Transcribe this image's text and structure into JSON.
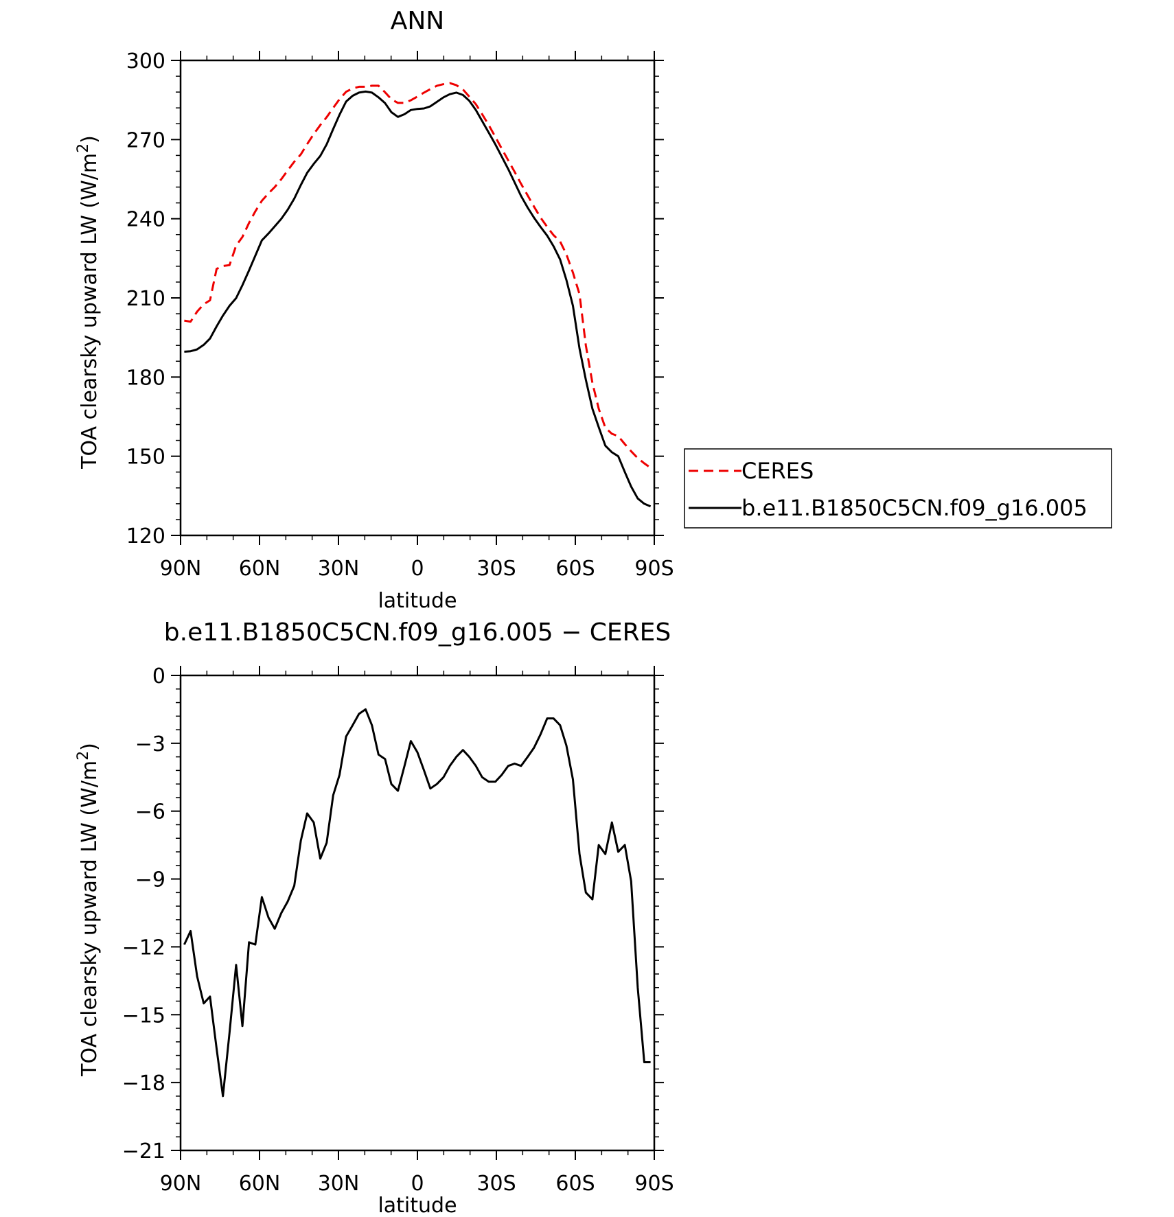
{
  "chart_data": [
    {
      "type": "line",
      "title": "ANN",
      "xlabel": "latitude",
      "ylabel": "TOA clearsky upward LW (W/m",
      "ylabel_sup": "2",
      "ylabel_close": ")",
      "xlim": [
        90,
        -90
      ],
      "ylim": [
        120,
        300
      ],
      "x_ticks": [
        90,
        60,
        30,
        0,
        -30,
        -60,
        -90
      ],
      "x_tick_labels": [
        "90N",
        "60N",
        "30N",
        "0",
        "30S",
        "60S",
        "90S"
      ],
      "y_ticks": [
        120,
        150,
        180,
        210,
        240,
        270,
        300
      ],
      "y_tick_labels": [
        "120",
        "150",
        "180",
        "210",
        "240",
        "270",
        "300"
      ],
      "legend_position": "right",
      "series": [
        {
          "name": "CERES",
          "color": "#ee0000",
          "dash": true,
          "x": [
            88.6,
            86.2,
            83.7,
            81.2,
            78.8,
            76.3,
            73.9,
            71.4,
            68.9,
            66.5,
            64.0,
            61.6,
            59.1,
            56.6,
            54.2,
            51.7,
            49.3,
            46.8,
            44.3,
            41.9,
            39.4,
            36.9,
            34.5,
            32.0,
            29.6,
            27.1,
            24.6,
            22.2,
            19.7,
            17.3,
            14.8,
            12.3,
            9.9,
            7.4,
            4.9,
            2.5,
            0.0,
            -2.5,
            -4.9,
            -7.4,
            -9.9,
            -12.3,
            -14.8,
            -17.3,
            -19.7,
            -22.2,
            -24.6,
            -27.1,
            -29.6,
            -32.0,
            -34.5,
            -36.9,
            -39.4,
            -41.9,
            -44.3,
            -46.8,
            -49.3,
            -51.7,
            -54.2,
            -56.6,
            -59.1,
            -61.6,
            -64.0,
            -66.5,
            -68.9,
            -71.4,
            -73.9,
            -76.3,
            -78.8,
            -81.2,
            -83.7,
            -86.2,
            -88.6
          ],
          "values": [
            201.4,
            201.0,
            204.8,
            207.6,
            209.1,
            221.0,
            222.1,
            222.4,
            229.8,
            233.1,
            238.4,
            242.8,
            246.8,
            249.6,
            252.0,
            255.0,
            258.3,
            261.6,
            264.4,
            268.3,
            272.1,
            275.5,
            278.5,
            282.0,
            285.3,
            288.1,
            289.4,
            290.0,
            290.0,
            290.4,
            290.4,
            287.9,
            285.3,
            283.9,
            283.9,
            284.9,
            286.3,
            287.8,
            289.1,
            290.4,
            291.0,
            291.4,
            290.6,
            289.0,
            286.3,
            283.4,
            279.6,
            275.5,
            271.0,
            266.6,
            262.1,
            257.8,
            253.2,
            248.8,
            244.6,
            240.4,
            236.9,
            233.8,
            231.4,
            226.5,
            219.6,
            211.4,
            192.0,
            177.8,
            168.0,
            160.8,
            158.5,
            157.6,
            154.6,
            151.9,
            149.3,
            147.3,
            145.6
          ],
          "values_note_ignore": false
        },
        {
          "name": "b.e11.B1850C5CN.f09_g16.005",
          "color": "#000000",
          "dash": false,
          "x": [
            88.6,
            86.2,
            83.7,
            81.2,
            78.8,
            76.3,
            73.9,
            71.4,
            68.9,
            66.5,
            64.0,
            61.6,
            59.1,
            56.6,
            54.2,
            51.7,
            49.3,
            46.8,
            44.3,
            41.9,
            39.4,
            36.9,
            34.5,
            32.0,
            29.6,
            27.1,
            24.6,
            22.2,
            19.7,
            17.3,
            14.8,
            12.3,
            9.9,
            7.4,
            4.9,
            2.5,
            0.0,
            -2.5,
            -4.9,
            -7.4,
            -9.9,
            -12.3,
            -14.8,
            -17.3,
            -19.7,
            -22.2,
            -24.6,
            -27.1,
            -29.6,
            -32.0,
            -34.5,
            -36.9,
            -39.4,
            -41.9,
            -44.3,
            -46.8,
            -49.3,
            -51.7,
            -54.2,
            -56.6,
            -59.1,
            -61.6,
            -64.0,
            -66.5,
            -68.9,
            -71.4,
            -73.9,
            -76.3,
            -78.8,
            -81.2,
            -83.7,
            -86.2,
            -88.6
          ],
          "values": [
            189.6,
            189.8,
            190.5,
            192.2,
            194.6,
            199.2,
            203.3,
            207.0,
            209.9,
            214.8,
            220.4,
            226.0,
            231.8,
            234.4,
            237.1,
            240.0,
            243.4,
            247.6,
            252.8,
            257.4,
            260.8,
            263.8,
            268.2,
            274.0,
            279.4,
            284.4,
            286.6,
            287.8,
            288.2,
            287.8,
            286.0,
            283.8,
            280.4,
            278.6,
            279.6,
            281.2,
            281.6,
            281.8,
            282.6,
            284.3,
            286.0,
            287.2,
            287.8,
            286.9,
            284.7,
            281.2,
            277.0,
            272.6,
            268.2,
            263.6,
            258.8,
            253.8,
            248.6,
            244.2,
            240.4,
            236.9,
            233.6,
            229.6,
            224.6,
            216.8,
            207.0,
            190.8,
            179.0,
            168.0,
            161.0,
            154.0,
            151.5,
            150.0,
            144.0,
            138.5,
            134.0,
            132.0,
            131.0
          ]
        }
      ]
    },
    {
      "type": "line",
      "title": "b.e11.B1850C5CN.f09_g16.005 − CERES",
      "xlabel": "latitude",
      "ylabel": "TOA clearsky upward LW (W/m",
      "ylabel_sup": "2",
      "ylabel_close": ")",
      "xlim": [
        90,
        -90
      ],
      "ylim": [
        -21,
        0
      ],
      "x_ticks": [
        90,
        60,
        30,
        0,
        -30,
        -60,
        -90
      ],
      "x_tick_labels": [
        "90N",
        "60N",
        "30N",
        "0",
        "30S",
        "60S",
        "90S"
      ],
      "y_ticks": [
        -21,
        -18,
        -15,
        -12,
        -9,
        -6,
        -3,
        0
      ],
      "y_tick_labels": [
        "−21",
        "−18",
        "−15",
        "−12",
        "−9",
        "−6",
        "−3",
        "0"
      ],
      "series": [
        {
          "color": "#000000",
          "dash": false,
          "x": [
            88.6,
            86.2,
            83.7,
            81.2,
            78.8,
            76.3,
            73.9,
            71.4,
            68.9,
            66.5,
            64.0,
            61.6,
            59.1,
            56.6,
            54.2,
            51.7,
            49.3,
            46.8,
            44.3,
            41.9,
            39.4,
            36.9,
            34.5,
            32.0,
            29.6,
            27.1,
            24.6,
            22.2,
            19.7,
            17.3,
            14.8,
            12.3,
            9.9,
            7.4,
            4.9,
            2.5,
            0.0,
            -2.5,
            -4.9,
            -7.4,
            -9.9,
            -12.3,
            -14.8,
            -17.3,
            -19.7,
            -22.2,
            -24.6,
            -27.1,
            -29.6,
            -32.0,
            -34.5,
            -36.9,
            -39.4,
            -41.9,
            -44.3,
            -46.8,
            -49.3,
            -51.7,
            -54.2,
            -56.6,
            -59.1,
            -61.6,
            -64.0,
            -66.5,
            -68.9,
            -71.4,
            -73.9,
            -76.3,
            -78.8,
            -81.2,
            -83.7,
            -86.2,
            -88.6
          ],
          "values": [
            -11.9,
            -11.3,
            -13.3,
            -14.5,
            -14.2,
            -16.5,
            -18.6,
            -15.8,
            -12.8,
            -15.5,
            -11.8,
            -11.9,
            -9.8,
            -10.7,
            -11.2,
            -10.5,
            -10.0,
            -9.3,
            -7.3,
            -6.1,
            -6.5,
            -8.1,
            -7.4,
            -5.3,
            -4.4,
            -2.7,
            -2.2,
            -1.7,
            -1.5,
            -2.2,
            -3.5,
            -3.7,
            -4.8,
            -5.1,
            -4.0,
            -2.9,
            -3.4,
            -4.2,
            -5.0,
            -4.8,
            -4.5,
            -4.0,
            -3.6,
            -3.3,
            -3.6,
            -4.0,
            -4.5,
            -4.7,
            -4.7,
            -4.4,
            -4.0,
            -3.9,
            -4.0,
            -3.6,
            -3.2,
            -2.6,
            -1.9,
            -1.9,
            -2.2,
            -3.1,
            -4.6,
            -7.9,
            -9.6,
            -9.9,
            -7.5,
            -7.9,
            -6.5,
            -7.8,
            -7.5,
            -9.1,
            -13.8,
            -17.1,
            -17.1
          ]
        }
      ]
    }
  ]
}
